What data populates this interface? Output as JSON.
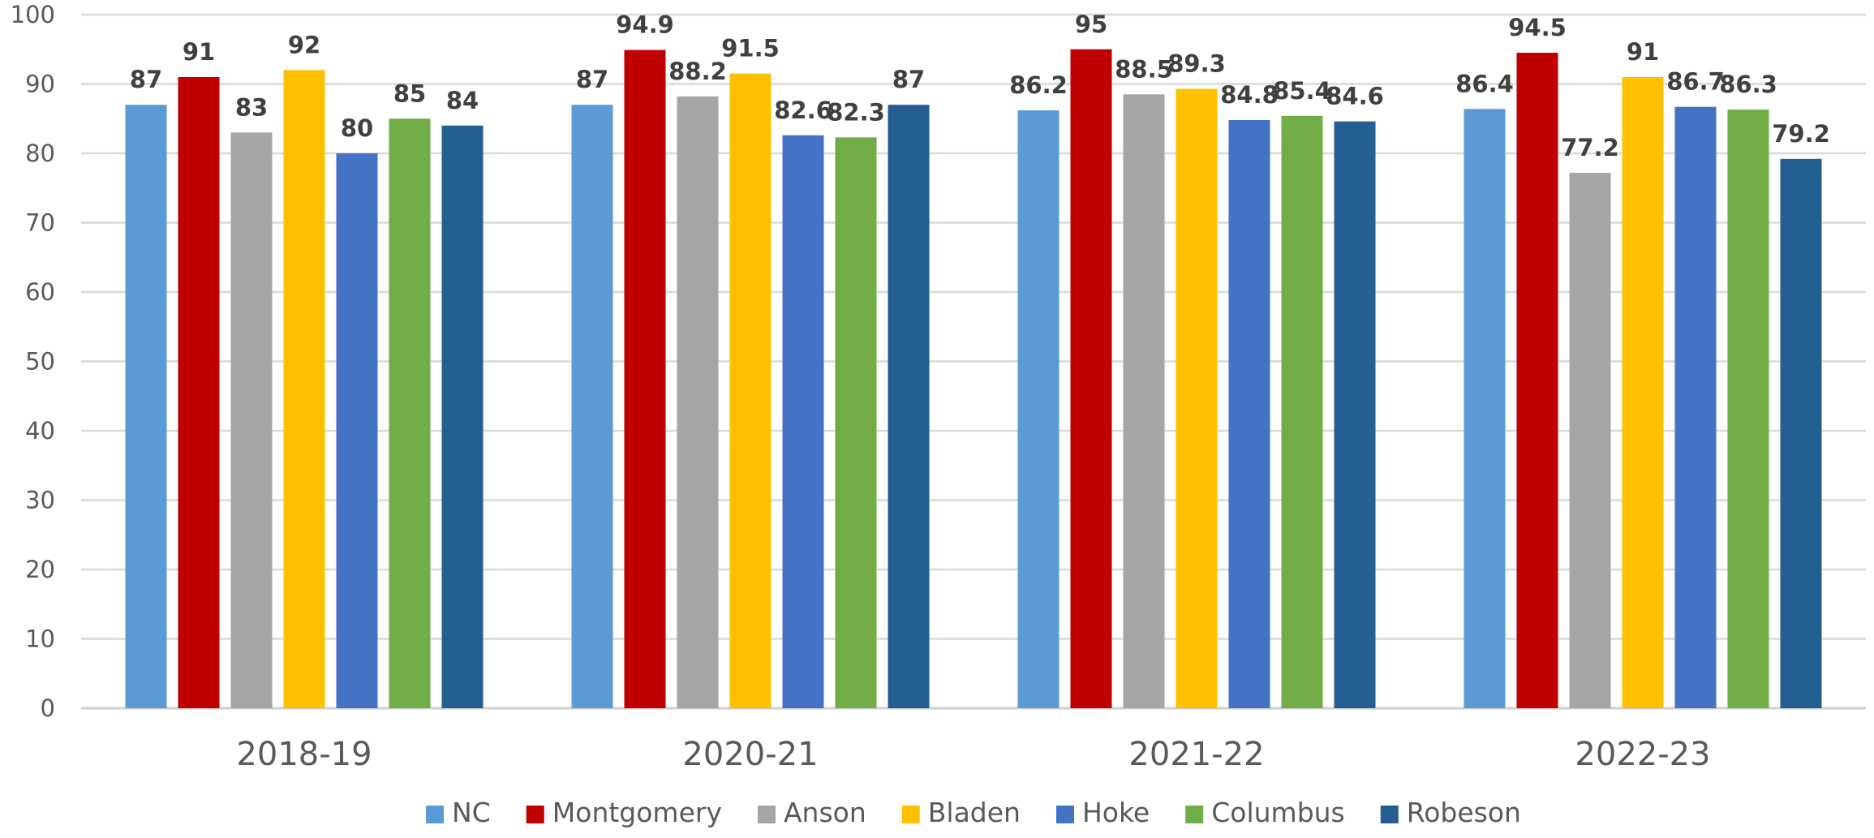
{
  "chart_data": {
    "type": "bar",
    "title": "",
    "xlabel": "",
    "ylabel": "",
    "ylim": [
      0,
      100
    ],
    "yticks": [
      0,
      10,
      20,
      30,
      40,
      50,
      60,
      70,
      80,
      90,
      100
    ],
    "grid": true,
    "legend_position": "bottom",
    "categories": [
      "2018-19",
      "2020-21",
      "2021-22",
      "2022-23"
    ],
    "series": [
      {
        "name": "NC",
        "color": "#5B9BD5",
        "values": [
          87,
          87,
          86.2,
          86.4
        ],
        "labels": [
          "87",
          "87",
          "86.2",
          "86.4"
        ]
      },
      {
        "name": "Montgomery",
        "color": "#C00000",
        "values": [
          91,
          94.9,
          95,
          94.5
        ],
        "labels": [
          "91",
          "94.9",
          "95",
          "94.5"
        ]
      },
      {
        "name": "Anson",
        "color": "#A5A5A5",
        "values": [
          83,
          88.2,
          88.5,
          77.2
        ],
        "labels": [
          "83",
          "88.2",
          "88.5",
          "77.2"
        ]
      },
      {
        "name": "Bladen",
        "color": "#FFC000",
        "values": [
          92,
          91.5,
          89.3,
          91
        ],
        "labels": [
          "92",
          "91.5",
          "89.3",
          "91"
        ]
      },
      {
        "name": "Hoke",
        "color": "#4472C4",
        "values": [
          80,
          82.6,
          84.8,
          86.7
        ],
        "labels": [
          "80",
          "82.6",
          "84.8",
          "86.7"
        ]
      },
      {
        "name": "Columbus",
        "color": "#70AD47",
        "values": [
          85,
          82.3,
          85.4,
          86.3
        ],
        "labels": [
          "85",
          "82.3",
          "85.4",
          "86.3"
        ]
      },
      {
        "name": "Robeson",
        "color": "#255E91",
        "values": [
          84,
          87,
          84.6,
          79.2
        ],
        "labels": [
          "84",
          "87",
          "84.6",
          "79.2"
        ]
      }
    ]
  }
}
